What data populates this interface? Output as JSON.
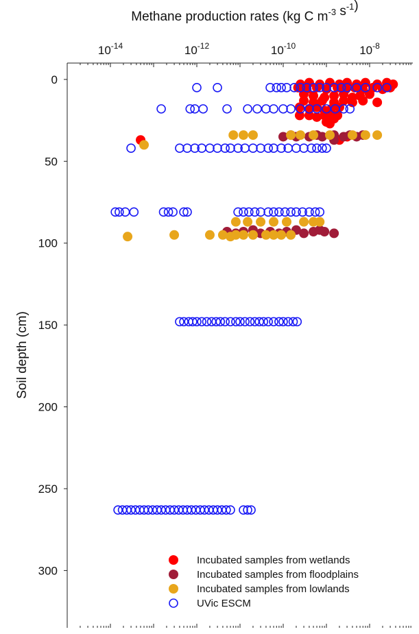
{
  "chart_data": {
    "type": "scatter",
    "xlabel": "Methane production rates (kg C m-3 s-1)",
    "ylabel": "Soil depth (cm)",
    "x_scale": "log",
    "x_axis_position": "top",
    "y_inverted": true,
    "xlim": [
      1e-15,
      1e-07
    ],
    "ylim": [
      -10,
      335
    ],
    "x_ticks": [
      1e-14,
      1e-12,
      1e-10,
      1e-08
    ],
    "x_tick_labels": [
      "10-14",
      "10-12",
      "10-10",
      "10-8"
    ],
    "y_ticks": [
      0,
      50,
      100,
      150,
      200,
      250,
      300
    ],
    "y_tick_labels": [
      "0",
      "50",
      "100",
      "150",
      "200",
      "250",
      "300"
    ],
    "grid": false,
    "legend_position": "bottom-right",
    "series": [
      {
        "name": "Incubated samples from wetlands",
        "color": "#ff0000",
        "marker": "filled-circle",
        "points": [
          [
            2.5e-10,
            3
          ],
          [
            4e-10,
            2
          ],
          [
            7e-10,
            3
          ],
          [
            1.2e-09,
            2
          ],
          [
            2e-09,
            3
          ],
          [
            3e-09,
            2
          ],
          [
            5e-09,
            3
          ],
          [
            8e-09,
            2
          ],
          [
            1.5e-08,
            3
          ],
          [
            2.5e-08,
            2
          ],
          [
            3.5e-08,
            3
          ],
          [
            2.2e-10,
            5
          ],
          [
            3.5e-10,
            6
          ],
          [
            6e-10,
            5
          ],
          [
            1e-09,
            6
          ],
          [
            1.8e-09,
            5
          ],
          [
            2.8e-09,
            6
          ],
          [
            4.5e-09,
            5
          ],
          [
            7e-09,
            6
          ],
          [
            1.2e-08,
            5
          ],
          [
            2e-08,
            6
          ],
          [
            3e-08,
            5
          ],
          [
            3e-10,
            9
          ],
          [
            5e-10,
            10
          ],
          [
            9e-10,
            11
          ],
          [
            1.5e-09,
            10
          ],
          [
            2.5e-09,
            9
          ],
          [
            4e-09,
            11
          ],
          [
            6e-09,
            10
          ],
          [
            1e-08,
            9
          ],
          [
            3e-10,
            13
          ],
          [
            5e-10,
            14
          ],
          [
            8e-10,
            13
          ],
          [
            1.5e-09,
            14
          ],
          [
            2.5e-09,
            13
          ],
          [
            4e-09,
            14
          ],
          [
            7e-09,
            13
          ],
          [
            1.5e-08,
            14
          ],
          [
            2.4e-10,
            17
          ],
          [
            4e-10,
            18
          ],
          [
            6e-10,
            17
          ],
          [
            9e-10,
            19
          ],
          [
            1.3e-09,
            18
          ],
          [
            2e-09,
            17
          ],
          [
            2.4e-10,
            22
          ],
          [
            4e-10,
            22
          ],
          [
            6e-10,
            23
          ],
          [
            9e-10,
            22
          ],
          [
            1.2e-09,
            22
          ],
          [
            1.8e-09,
            22
          ],
          [
            1e-09,
            26
          ],
          [
            1.2e-09,
            27
          ],
          [
            1.5e-09,
            24
          ],
          [
            3e-09,
            35
          ],
          [
            2e-09,
            37
          ],
          [
            5e-14,
            37
          ]
        ]
      },
      {
        "name": "Incubated samples from floodplains",
        "color": "#a01c38",
        "marker": "filled-circle",
        "points": [
          [
            1e-10,
            35
          ],
          [
            1.5e-10,
            34
          ],
          [
            2e-10,
            35
          ],
          [
            4e-10,
            35
          ],
          [
            6e-10,
            34
          ],
          [
            8e-10,
            35
          ],
          [
            1.5e-09,
            34
          ],
          [
            2.5e-09,
            35
          ],
          [
            3.5e-09,
            34
          ],
          [
            5e-09,
            35
          ],
          [
            7e-09,
            34
          ],
          [
            1.5e-09,
            37
          ],
          [
            5e-12,
            93
          ],
          [
            8e-12,
            94
          ],
          [
            1.2e-11,
            93
          ],
          [
            2e-11,
            92
          ],
          [
            3e-11,
            94
          ],
          [
            5e-11,
            93
          ],
          [
            8e-11,
            94
          ],
          [
            1.2e-10,
            93
          ],
          [
            2e-10,
            92
          ],
          [
            3e-10,
            94
          ],
          [
            5e-10,
            93
          ],
          [
            7e-10,
            92
          ],
          [
            9e-10,
            93
          ],
          [
            1.5e-09,
            94
          ]
        ]
      },
      {
        "name": "Incubated samples from lowlands",
        "color": "#e8a61c",
        "marker": "filled-circle",
        "points": [
          [
            7e-12,
            34
          ],
          [
            1.2e-11,
            34
          ],
          [
            2e-11,
            34
          ],
          [
            1.5e-10,
            34
          ],
          [
            2.5e-10,
            34
          ],
          [
            5e-10,
            34
          ],
          [
            1.2e-09,
            34
          ],
          [
            4e-09,
            34
          ],
          [
            8e-09,
            34
          ],
          [
            1.5e-08,
            34
          ],
          [
            6e-14,
            40
          ],
          [
            8e-12,
            87
          ],
          [
            1.5e-11,
            87
          ],
          [
            3e-11,
            87
          ],
          [
            6e-11,
            87
          ],
          [
            1.2e-10,
            87
          ],
          [
            3e-10,
            87
          ],
          [
            5e-10,
            87
          ],
          [
            7e-10,
            87
          ],
          [
            2.5e-14,
            96
          ],
          [
            3e-13,
            95
          ],
          [
            2e-12,
            95
          ],
          [
            4e-12,
            95
          ],
          [
            6e-12,
            96
          ],
          [
            8e-12,
            95
          ],
          [
            1.2e-11,
            95
          ],
          [
            2e-11,
            95
          ],
          [
            4e-11,
            95
          ],
          [
            6e-11,
            95
          ],
          [
            9e-11,
            95
          ],
          [
            1.5e-10,
            95
          ]
        ]
      },
      {
        "name": "UVic ESCM",
        "color": "#1b1bf5",
        "marker": "open-circle",
        "points": [
          [
            1e-12,
            5
          ],
          [
            3e-12,
            5
          ],
          [
            5e-11,
            5
          ],
          [
            7e-11,
            5
          ],
          [
            9e-11,
            5
          ],
          [
            1.2e-10,
            5
          ],
          [
            1.8e-10,
            5
          ],
          [
            2.5e-10,
            5
          ],
          [
            3.5e-10,
            5
          ],
          [
            5e-10,
            5
          ],
          [
            7e-10,
            5
          ],
          [
            1e-09,
            5
          ],
          [
            1.5e-09,
            5
          ],
          [
            2.2e-09,
            5
          ],
          [
            3e-09,
            5
          ],
          [
            5e-09,
            5
          ],
          [
            8e-09,
            5
          ],
          [
            1.5e-08,
            5
          ],
          [
            2.5e-08,
            5
          ],
          [
            1.5e-13,
            18
          ],
          [
            7e-13,
            18
          ],
          [
            9e-13,
            18
          ],
          [
            1.4e-12,
            18
          ],
          [
            5e-12,
            18
          ],
          [
            1.5e-11,
            18
          ],
          [
            2.5e-11,
            18
          ],
          [
            4e-11,
            18
          ],
          [
            6e-11,
            18
          ],
          [
            1e-10,
            18
          ],
          [
            1.5e-10,
            18
          ],
          [
            2.5e-10,
            18
          ],
          [
            4e-10,
            18
          ],
          [
            6e-10,
            18
          ],
          [
            1e-09,
            18
          ],
          [
            1.6e-09,
            18
          ],
          [
            2.5e-09,
            18
          ],
          [
            3.5e-09,
            18
          ],
          [
            3e-14,
            42
          ],
          [
            4e-13,
            42
          ],
          [
            6e-13,
            42
          ],
          [
            9e-13,
            42
          ],
          [
            1.3e-12,
            42
          ],
          [
            2e-12,
            42
          ],
          [
            3e-12,
            42
          ],
          [
            4.5e-12,
            42
          ],
          [
            6e-12,
            42
          ],
          [
            9e-12,
            42
          ],
          [
            1.3e-11,
            42
          ],
          [
            2e-11,
            42
          ],
          [
            3e-11,
            42
          ],
          [
            4.5e-11,
            42
          ],
          [
            6e-11,
            42
          ],
          [
            9e-11,
            42
          ],
          [
            1.3e-10,
            42
          ],
          [
            2e-10,
            42
          ],
          [
            3e-10,
            42
          ],
          [
            4.5e-10,
            42
          ],
          [
            6e-10,
            42
          ],
          [
            8e-10,
            42
          ],
          [
            1e-09,
            42
          ],
          [
            1.3e-14,
            81
          ],
          [
            1.6e-14,
            81
          ],
          [
            2.2e-14,
            81
          ],
          [
            3.5e-14,
            81
          ],
          [
            1.7e-13,
            81
          ],
          [
            2.2e-13,
            81
          ],
          [
            2.8e-13,
            81
          ],
          [
            5e-13,
            81
          ],
          [
            6e-13,
            81
          ],
          [
            9e-12,
            81
          ],
          [
            1.2e-11,
            81
          ],
          [
            1.6e-11,
            81
          ],
          [
            2.2e-11,
            81
          ],
          [
            3e-11,
            81
          ],
          [
            4.5e-11,
            81
          ],
          [
            6e-11,
            81
          ],
          [
            8e-11,
            81
          ],
          [
            1.1e-10,
            81
          ],
          [
            1.5e-10,
            81
          ],
          [
            2e-10,
            81
          ],
          [
            2.8e-10,
            81
          ],
          [
            4e-10,
            81
          ],
          [
            5.5e-10,
            81
          ],
          [
            7e-10,
            81
          ],
          [
            4e-13,
            148
          ],
          [
            5e-13,
            148
          ],
          [
            6.5e-13,
            148
          ],
          [
            8e-13,
            148
          ],
          [
            1e-12,
            148
          ],
          [
            1.3e-12,
            148
          ],
          [
            1.7e-12,
            148
          ],
          [
            2.2e-12,
            148
          ],
          [
            2.8e-12,
            148
          ],
          [
            3.5e-12,
            148
          ],
          [
            4.5e-12,
            148
          ],
          [
            6e-12,
            148
          ],
          [
            8e-12,
            148
          ],
          [
            1e-11,
            148
          ],
          [
            1.3e-11,
            148
          ],
          [
            1.7e-11,
            148
          ],
          [
            2.2e-11,
            148
          ],
          [
            2.8e-11,
            148
          ],
          [
            3.5e-11,
            148
          ],
          [
            4.5e-11,
            148
          ],
          [
            6e-11,
            148
          ],
          [
            8e-11,
            148
          ],
          [
            1e-10,
            148
          ],
          [
            1.3e-10,
            148
          ],
          [
            1.7e-10,
            148
          ],
          [
            2.1e-10,
            148
          ],
          [
            1.5e-14,
            263
          ],
          [
            1.9e-14,
            263
          ],
          [
            2.4e-14,
            263
          ],
          [
            3e-14,
            263
          ],
          [
            3.8e-14,
            263
          ],
          [
            4.8e-14,
            263
          ],
          [
            6e-14,
            263
          ],
          [
            7.5e-14,
            263
          ],
          [
            9.5e-14,
            263
          ],
          [
            1.2e-13,
            263
          ],
          [
            1.5e-13,
            263
          ],
          [
            1.9e-13,
            263
          ],
          [
            2.4e-13,
            263
          ],
          [
            3e-13,
            263
          ],
          [
            3.8e-13,
            263
          ],
          [
            4.8e-13,
            263
          ],
          [
            6e-13,
            263
          ],
          [
            7.5e-13,
            263
          ],
          [
            9.5e-13,
            263
          ],
          [
            1.2e-12,
            263
          ],
          [
            1.5e-12,
            263
          ],
          [
            1.9e-12,
            263
          ],
          [
            2.4e-12,
            263
          ],
          [
            3e-12,
            263
          ],
          [
            3.8e-12,
            263
          ],
          [
            4.8e-12,
            263
          ],
          [
            6e-12,
            263
          ],
          [
            1.2e-11,
            263
          ],
          [
            1.5e-11,
            263
          ],
          [
            1.8e-11,
            263
          ]
        ]
      }
    ]
  }
}
